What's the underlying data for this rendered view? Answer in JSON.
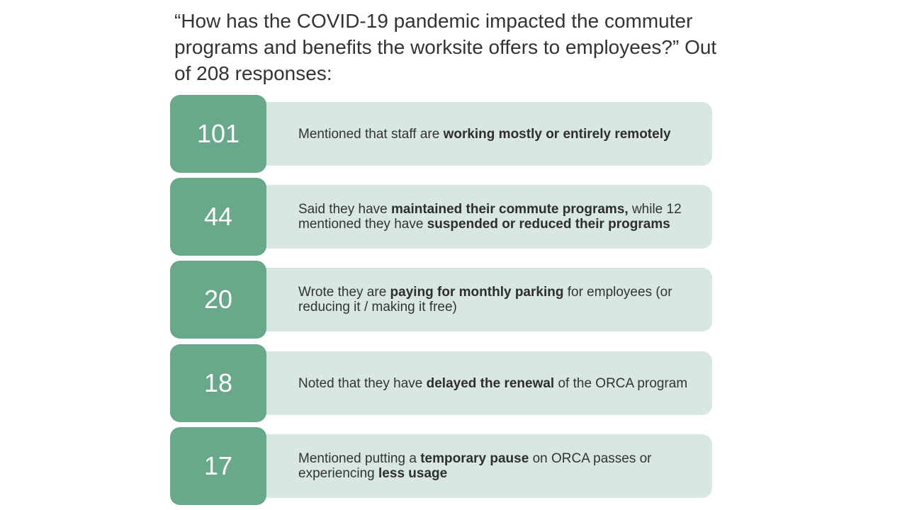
{
  "title": "“How has the COVID-19 pandemic impacted the commuter programs and benefits the worksite offers to employees?” Out of 208 responses:",
  "items": [
    {
      "number": "101",
      "parts": [
        {
          "text": "Mentioned that staff are ",
          "bold": false
        },
        {
          "text": "working mostly or entirely remotely",
          "bold": true
        }
      ]
    },
    {
      "number": "44",
      "parts": [
        {
          "text": "Said they have ",
          "bold": false
        },
        {
          "text": "maintained their commute programs,",
          "bold": true
        },
        {
          "text": " while 12 mentioned they have ",
          "bold": false
        },
        {
          "text": "suspended or reduced their programs",
          "bold": true
        }
      ]
    },
    {
      "number": "20",
      "parts": [
        {
          "text": "Wrote they are ",
          "bold": false
        },
        {
          "text": "paying for monthly parking",
          "bold": true
        },
        {
          "text": " for employees (or reducing it / making it free)",
          "bold": false
        }
      ]
    },
    {
      "number": "18",
      "parts": [
        {
          "text": "Noted that they have ",
          "bold": false
        },
        {
          "text": "delayed the renewal",
          "bold": true
        },
        {
          "text": " of the ORCA program",
          "bold": false
        }
      ]
    },
    {
      "number": "17",
      "parts": [
        {
          "text": "Mentioned putting a ",
          "bold": false
        },
        {
          "text": "temporary pause",
          "bold": true
        },
        {
          "text": " on ORCA passes or experiencing ",
          "bold": false
        },
        {
          "text": "less usage",
          "bold": true
        }
      ]
    }
  ]
}
